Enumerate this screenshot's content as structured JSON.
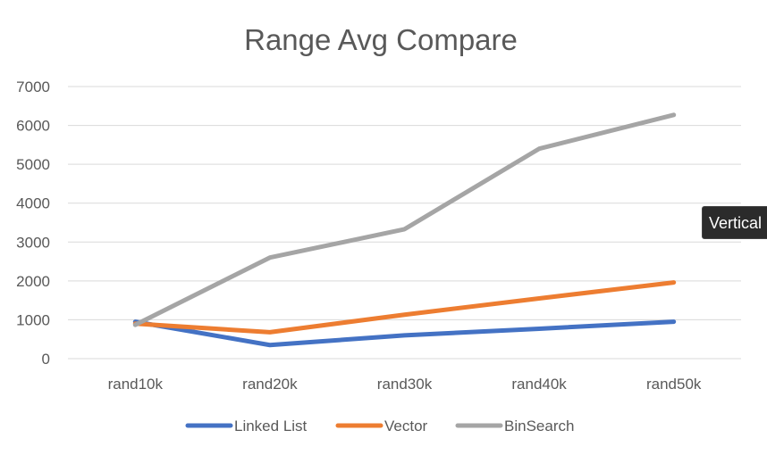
{
  "chart_data": {
    "type": "line",
    "title": "Range Avg Compare",
    "categories": [
      "rand10k",
      "rand20k",
      "rand30k",
      "rand40k",
      "rand50k"
    ],
    "ylim": [
      0,
      7000
    ],
    "yticks": [
      0,
      1000,
      2000,
      3000,
      4000,
      5000,
      6000,
      7000
    ],
    "grid": true,
    "legend_position": "bottom",
    "series": [
      {
        "name": "Linked List",
        "color": "#4472C4",
        "values": [
          950,
          350,
          600,
          770,
          950
        ]
      },
      {
        "name": "Vector",
        "color": "#ED7D31",
        "values": [
          900,
          680,
          1130,
          1550,
          1960
        ]
      },
      {
        "name": "BinSearch",
        "color": "#A5A5A5",
        "values": [
          870,
          2600,
          3330,
          5400,
          6270
        ]
      }
    ]
  },
  "tooltip": {
    "text": "Vertical"
  }
}
